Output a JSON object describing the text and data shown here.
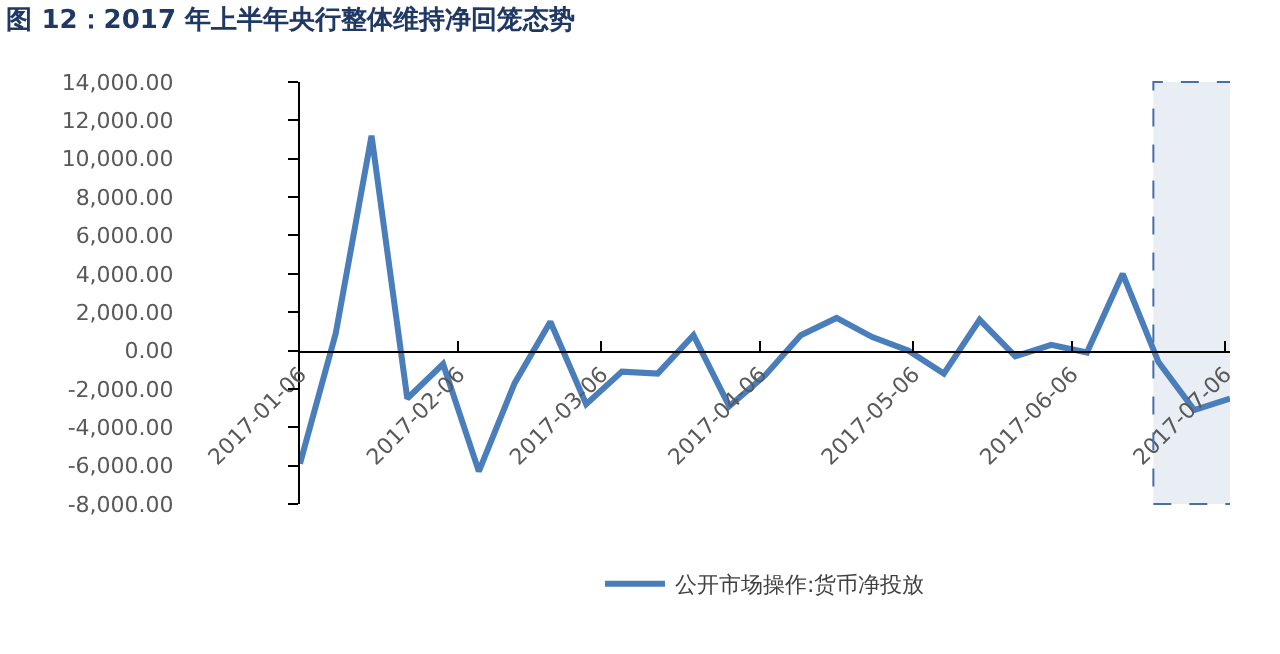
{
  "chart_data": {
    "type": "line",
    "title": "图 12：2017 年上半年央行整体维持净回笼态势",
    "x": [
      "2017-01-06",
      "2017-01-13",
      "2017-01-20",
      "2017-01-27",
      "2017-02-03",
      "2017-02-10",
      "2017-02-17",
      "2017-02-24",
      "2017-03-03",
      "2017-03-10",
      "2017-03-17",
      "2017-03-24",
      "2017-03-31",
      "2017-04-07",
      "2017-04-14",
      "2017-04-21",
      "2017-04-28",
      "2017-05-05",
      "2017-05-12",
      "2017-05-19",
      "2017-05-26",
      "2017-06-02",
      "2017-06-09",
      "2017-06-16",
      "2017-06-23",
      "2017-06-30",
      "2017-07-07"
    ],
    "series": [
      {
        "name": "公开市场操作:货币净投放",
        "color": "#4a7ebb",
        "values": [
          -5900,
          900,
          11200,
          -2500,
          -700,
          -6300,
          -1700,
          1500,
          -2800,
          -1100,
          -1200,
          800,
          -2900,
          -1300,
          800,
          1700,
          700,
          0,
          -1200,
          1600,
          -300,
          300,
          -100,
          4000,
          -600,
          -3100,
          -2500
        ]
      }
    ],
    "xlim": [
      "2017-01-06",
      "2017-07-07"
    ],
    "xticks": [
      "2017-01-06",
      "2017-02-06",
      "2017-03-06",
      "2017-04-06",
      "2017-05-06",
      "2017-06-06",
      "2017-07-06"
    ],
    "ylim": [
      -8000,
      14000
    ],
    "yticks": [
      {
        "value": -8000,
        "label": "-8,000.00"
      },
      {
        "value": -6000,
        "label": "-6,000.00"
      },
      {
        "value": -4000,
        "label": "-4,000.00"
      },
      {
        "value": -2000,
        "label": "-2,000.00"
      },
      {
        "value": 0,
        "label": "0.00"
      },
      {
        "value": 2000,
        "label": "2,000.00"
      },
      {
        "value": 4000,
        "label": "4,000.00"
      },
      {
        "value": 6000,
        "label": "6,000.00"
      },
      {
        "value": 8000,
        "label": "8,000.00"
      },
      {
        "value": 10000,
        "label": "10,000.00"
      },
      {
        "value": 12000,
        "label": "12,000.00"
      },
      {
        "value": 14000,
        "label": "14,000.00"
      }
    ],
    "bands": [
      {
        "axis": "x",
        "from": "2017-06-22",
        "to": "2017-07-08",
        "color": "#4a6fa5"
      }
    ],
    "grid": false,
    "legend": "bottom",
    "marker": "none",
    "line_style": "solid"
  }
}
